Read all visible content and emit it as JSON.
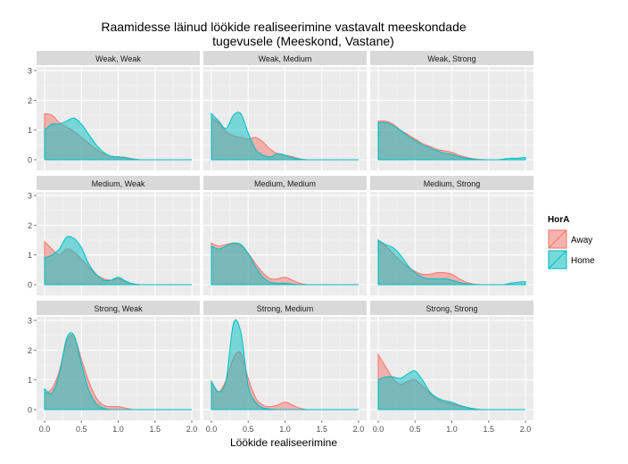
{
  "chart_data": {
    "type": "area",
    "title_line1": "Raamidesse läinud löökide realiseerimine vastavalt meeskondade",
    "title_line2": "tugevusele (Meeskond, Vastane)",
    "xlabel": "Löökide realiseerimine",
    "ylabel": "",
    "xlim": [
      0,
      2.0
    ],
    "ylim": [
      0,
      3
    ],
    "x_ticks": [
      "0.0",
      "0.5",
      "1.0",
      "1.5",
      "2.0"
    ],
    "y_ticks": [
      "0",
      "1",
      "2",
      "3"
    ],
    "grid": true,
    "legend": {
      "title": "HorA",
      "placement": "right",
      "entries": [
        "Away",
        "Home"
      ]
    },
    "colors": {
      "Away": "#F8766D",
      "Home": "#00BFC4",
      "panel_bg": "#EBEBEB",
      "strip_bg": "#D9D9D9"
    },
    "x": [
      0.0,
      0.1,
      0.2,
      0.3,
      0.4,
      0.5,
      0.6,
      0.7,
      0.8,
      0.9,
      1.0,
      1.1,
      1.2,
      1.3,
      1.4,
      1.5,
      1.6,
      1.7,
      1.8,
      1.9,
      2.0
    ],
    "panels": [
      {
        "strip": "Weak, Weak",
        "series": [
          {
            "name": "Away",
            "values": [
              1.55,
              1.5,
              1.25,
              1.1,
              0.95,
              0.75,
              0.55,
              0.35,
              0.2,
              0.12,
              0.1,
              0.08,
              0.03,
              0.0,
              0.0,
              0.0,
              0.0,
              0.0,
              0.0,
              0.0,
              0.0
            ]
          },
          {
            "name": "Home",
            "values": [
              1.0,
              1.2,
              1.2,
              1.3,
              1.4,
              1.2,
              0.85,
              0.5,
              0.25,
              0.12,
              0.1,
              0.06,
              0.02,
              0.0,
              0.0,
              0.0,
              0.0,
              0.0,
              0.0,
              0.0,
              0.0
            ]
          }
        ]
      },
      {
        "strip": "Weak, Medium",
        "series": [
          {
            "name": "Away",
            "values": [
              1.4,
              1.25,
              0.95,
              0.8,
              0.75,
              0.7,
              0.75,
              0.6,
              0.35,
              0.2,
              0.15,
              0.1,
              0.03,
              0.0,
              0.0,
              0.0,
              0.0,
              0.0,
              0.0,
              0.0,
              0.0
            ]
          },
          {
            "name": "Home",
            "values": [
              1.55,
              1.3,
              1.05,
              1.5,
              1.55,
              0.9,
              0.35,
              0.15,
              0.1,
              0.2,
              0.15,
              0.06,
              0.02,
              0.0,
              0.0,
              0.0,
              0.0,
              0.0,
              0.0,
              0.0,
              0.0
            ]
          }
        ]
      },
      {
        "strip": "Weak, Strong",
        "series": [
          {
            "name": "Away",
            "values": [
              1.3,
              1.3,
              1.2,
              1.0,
              0.85,
              0.7,
              0.55,
              0.45,
              0.35,
              0.3,
              0.25,
              0.15,
              0.08,
              0.03,
              0.01,
              0.0,
              0.0,
              0.0,
              0.0,
              0.0,
              0.0
            ]
          },
          {
            "name": "Home",
            "values": [
              1.25,
              1.25,
              1.15,
              1.0,
              0.8,
              0.65,
              0.5,
              0.4,
              0.3,
              0.22,
              0.18,
              0.1,
              0.05,
              0.02,
              0.0,
              0.0,
              0.0,
              0.02,
              0.05,
              0.05,
              0.08
            ]
          }
        ]
      },
      {
        "strip": "Medium, Weak",
        "series": [
          {
            "name": "Away",
            "values": [
              1.45,
              1.2,
              1.0,
              1.2,
              1.1,
              0.85,
              0.6,
              0.35,
              0.2,
              0.15,
              0.2,
              0.1,
              0.03,
              0.0,
              0.0,
              0.0,
              0.0,
              0.0,
              0.0,
              0.0,
              0.0
            ]
          },
          {
            "name": "Home",
            "values": [
              0.9,
              1.0,
              1.2,
              1.6,
              1.55,
              1.25,
              0.7,
              0.35,
              0.15,
              0.15,
              0.25,
              0.12,
              0.03,
              0.0,
              0.0,
              0.0,
              0.0,
              0.0,
              0.0,
              0.0,
              0.0
            ]
          }
        ]
      },
      {
        "strip": "Medium, Medium",
        "series": [
          {
            "name": "Away",
            "values": [
              1.4,
              1.3,
              1.35,
              1.4,
              1.3,
              1.05,
              0.7,
              0.4,
              0.2,
              0.2,
              0.25,
              0.15,
              0.05,
              0.0,
              0.0,
              0.0,
              0.0,
              0.0,
              0.0,
              0.0,
              0.0
            ]
          },
          {
            "name": "Home",
            "values": [
              1.3,
              1.2,
              1.3,
              1.4,
              1.35,
              1.05,
              0.6,
              0.25,
              0.08,
              0.05,
              0.05,
              0.02,
              0.0,
              0.0,
              0.0,
              0.0,
              0.0,
              0.0,
              0.0,
              0.0,
              0.0
            ]
          }
        ]
      },
      {
        "strip": "Medium, Strong",
        "series": [
          {
            "name": "Away",
            "values": [
              1.45,
              1.3,
              1.05,
              0.8,
              0.6,
              0.45,
              0.35,
              0.35,
              0.4,
              0.4,
              0.35,
              0.2,
              0.08,
              0.02,
              0.0,
              0.0,
              0.0,
              0.0,
              0.0,
              0.0,
              0.0
            ]
          },
          {
            "name": "Home",
            "values": [
              1.5,
              1.35,
              1.25,
              1.0,
              0.65,
              0.4,
              0.25,
              0.2,
              0.2,
              0.2,
              0.15,
              0.08,
              0.03,
              0.01,
              0.0,
              0.0,
              0.0,
              0.0,
              0.05,
              0.08,
              0.1
            ]
          }
        ]
      },
      {
        "strip": "Strong, Weak",
        "series": [
          {
            "name": "Away",
            "values": [
              0.55,
              0.7,
              1.3,
              2.3,
              2.45,
              1.7,
              0.95,
              0.4,
              0.15,
              0.1,
              0.1,
              0.05,
              0.0,
              0.0,
              0.0,
              0.0,
              0.0,
              0.0,
              0.0,
              0.0,
              0.0
            ]
          },
          {
            "name": "Home",
            "values": [
              0.7,
              0.55,
              1.2,
              2.4,
              2.5,
              1.55,
              0.65,
              0.2,
              0.05,
              0.0,
              0.0,
              0.0,
              0.0,
              0.0,
              0.0,
              0.0,
              0.0,
              0.0,
              0.0,
              0.0,
              0.0
            ]
          }
        ]
      },
      {
        "strip": "Strong, Medium",
        "series": [
          {
            "name": "Away",
            "values": [
              0.95,
              0.6,
              1.0,
              1.75,
              1.9,
              1.05,
              0.4,
              0.15,
              0.1,
              0.15,
              0.25,
              0.15,
              0.05,
              0.0,
              0.0,
              0.0,
              0.0,
              0.0,
              0.0,
              0.0,
              0.0
            ]
          },
          {
            "name": "Home",
            "values": [
              0.95,
              0.6,
              1.0,
              2.9,
              2.6,
              0.8,
              0.25,
              0.06,
              0.02,
              0.0,
              0.0,
              0.0,
              0.0,
              0.0,
              0.0,
              0.0,
              0.0,
              0.0,
              0.0,
              0.0,
              0.0
            ]
          }
        ]
      },
      {
        "strip": "Strong, Strong",
        "series": [
          {
            "name": "Away",
            "values": [
              1.85,
              1.45,
              1.05,
              0.85,
              0.95,
              1.0,
              0.8,
              0.55,
              0.35,
              0.25,
              0.2,
              0.12,
              0.06,
              0.02,
              0.0,
              0.0,
              0.0,
              0.0,
              0.0,
              0.0,
              0.0
            ]
          },
          {
            "name": "Home",
            "values": [
              1.0,
              1.1,
              1.1,
              1.05,
              1.2,
              1.3,
              1.0,
              0.6,
              0.4,
              0.3,
              0.25,
              0.15,
              0.08,
              0.03,
              0.0,
              0.0,
              0.0,
              0.0,
              0.0,
              0.0,
              0.0
            ]
          }
        ]
      }
    ]
  }
}
